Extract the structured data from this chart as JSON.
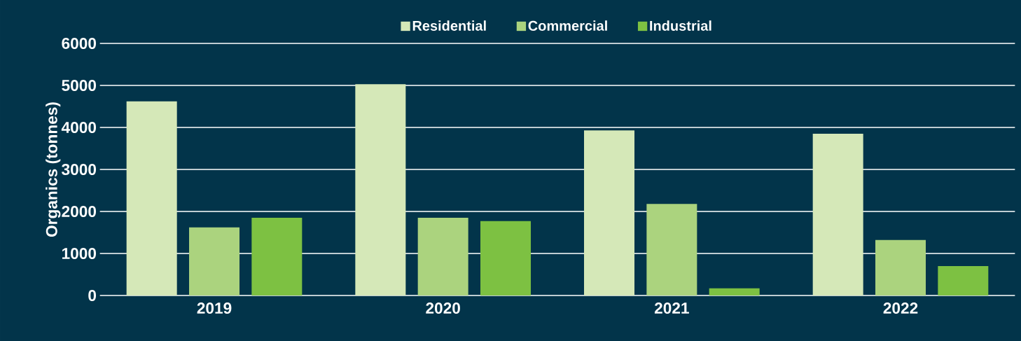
{
  "chart_data": {
    "type": "bar",
    "ylabel": "Organics (tonnes)",
    "categories": [
      "2019",
      "2020",
      "2021",
      "2022"
    ],
    "series": [
      {
        "name": "Residential",
        "color": "#d5e8b8",
        "values": [
          4620,
          5030,
          3930,
          3850
        ]
      },
      {
        "name": "Commercial",
        "color": "#abd37e",
        "values": [
          1620,
          1850,
          2180,
          1320
        ]
      },
      {
        "name": "Industrial",
        "color": "#7dc142",
        "values": [
          1850,
          1770,
          170,
          700
        ]
      }
    ],
    "ylim": [
      0,
      6000
    ],
    "yticks": [
      0,
      1000,
      2000,
      3000,
      4000,
      5000,
      6000
    ],
    "grid": "y",
    "legend": "top"
  }
}
